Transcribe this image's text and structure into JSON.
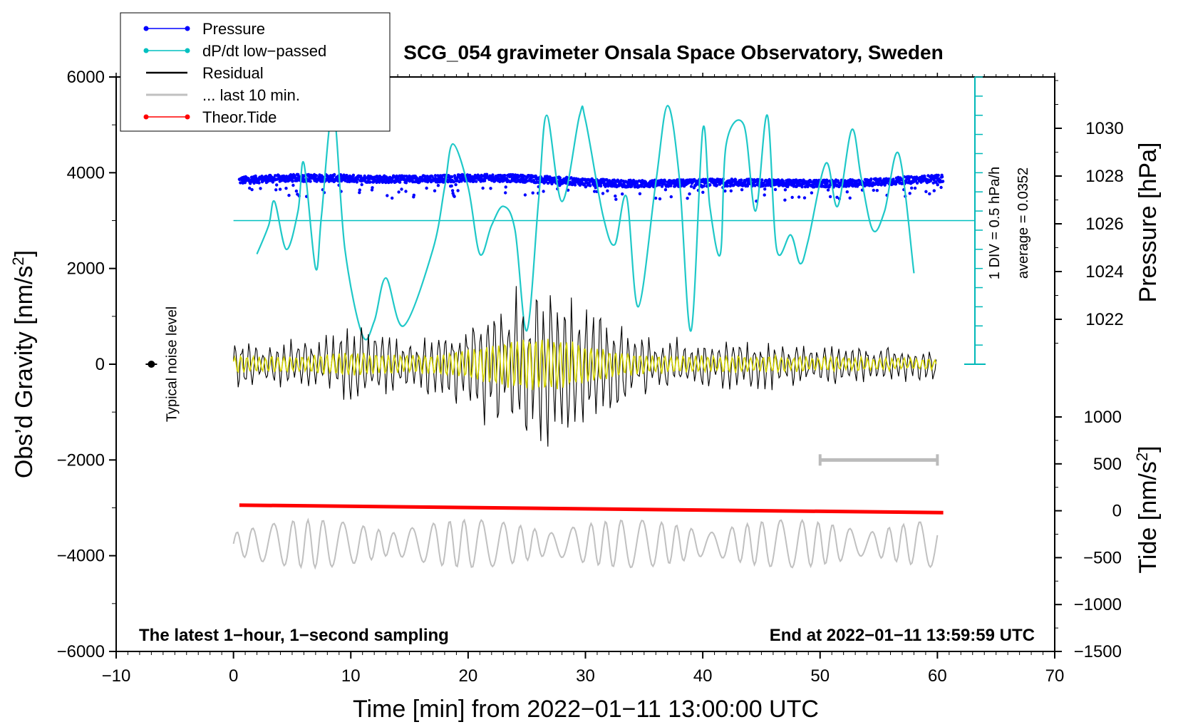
{
  "chart_data": {
    "type": "line",
    "title": "SCG_054 gravimeter Onsala Space Observatory, Sweden",
    "xlabel": "Time [min] from 2022−01−11 13:00:00 UTC",
    "ylabel_left": "Obs’d Gravity [nm/s",
    "ylabel_left_sup": "2",
    "ylabel_left_end": "]",
    "ylabel_right_pressure": "Pressure [hPa]",
    "ylabel_right_tide": "Tide [nm/s",
    "ylabel_right_tide_sup": "2",
    "ylabel_right_tide_end": "]",
    "xlim": [
      -10,
      70
    ],
    "ylim_left": [
      -6000,
      6000
    ],
    "x_ticks": [
      "−10",
      "0",
      "10",
      "20",
      "30",
      "40",
      "50",
      "60",
      "70"
    ],
    "x_tick_values": [
      -10,
      0,
      10,
      20,
      30,
      40,
      50,
      60,
      70
    ],
    "y_left_ticks": [
      "6000",
      "4000",
      "2000",
      "0",
      "−2000",
      "−4000",
      "−6000"
    ],
    "y_left_tick_values": [
      6000,
      4000,
      2000,
      0,
      -2000,
      -4000,
      -6000
    ],
    "pressure_ticks": [
      "1030",
      "1028",
      "1026",
      "1024",
      "1022"
    ],
    "pressure_tick_values": [
      1030,
      1028,
      1026,
      1024,
      1022
    ],
    "tide_ticks": [
      "1000",
      "500",
      "0",
      "−500",
      "−1000",
      "−1500"
    ],
    "tide_tick_values": [
      1000,
      500,
      0,
      -500,
      -1000,
      -1500
    ],
    "legend": [
      {
        "label": "Pressure",
        "color": "#0000ff",
        "marker": true
      },
      {
        "label": "dP/dt low−passed",
        "color": "#00c0c0",
        "marker": true
      },
      {
        "label": "Residual",
        "color": "#000000",
        "marker": false
      },
      {
        "label": "... last 10 min.",
        "color": "#c0c0c0",
        "marker": false
      },
      {
        "label": "Theor.Tide",
        "color": "#ff0000",
        "marker": true
      }
    ],
    "series": [
      {
        "name": "Pressure",
        "unit": "hPa",
        "x_range": [
          0.5,
          60.5
        ],
        "mean": 1027.8,
        "scatter": 0.3
      },
      {
        "name": "dP/dt low−passed",
        "unit": "hPa/h",
        "baseline_gravity": 3000,
        "x": [
          2,
          3,
          3.5,
          4.5,
          5.5,
          6,
          7,
          7.5,
          8.5,
          9.5,
          11,
          12,
          13,
          14.5,
          17,
          18,
          18.7,
          20,
          21,
          22,
          23,
          24,
          25,
          26,
          26.7,
          28,
          29.5,
          30,
          31.5,
          32.5,
          33.5,
          34.5,
          36,
          37,
          38,
          39,
          40,
          40.6,
          41.5,
          42,
          43.5,
          44.5,
          45.5,
          46.3,
          47.5,
          48.3,
          49,
          50.5,
          51.5,
          52.7,
          53.5,
          54.5,
          55.5,
          56.7,
          58
        ],
        "values_gravity": [
          2300,
          2900,
          3400,
          2400,
          3200,
          4200,
          2000,
          3100,
          5300,
          2400,
          600,
          900,
          1800,
          800,
          2400,
          3700,
          4600,
          3700,
          2300,
          2900,
          3300,
          2800,
          700,
          3400,
          5200,
          3400,
          5200,
          5100,
          3100,
          2500,
          3500,
          1200,
          3800,
          5400,
          3900,
          700,
          4900,
          3300,
          2300,
          4600,
          5000,
          3200,
          5200,
          2400,
          2700,
          2100,
          2600,
          4200,
          3300,
          4900,
          3900,
          2800,
          3200,
          4400,
          1900
        ]
      },
      {
        "name": "Residual",
        "unit": "nm/s2",
        "x_range": [
          0,
          60
        ],
        "amplitude_max": 2000
      },
      {
        "name": "last 10 min",
        "x_range": [
          0,
          60
        ],
        "offset_gravity": -3750,
        "amplitude": 500
      },
      {
        "name": "Theor.Tide",
        "unit": "nm/s2",
        "x": [
          0.5,
          60.5
        ],
        "values": [
          60,
          -20
        ]
      }
    ],
    "noise_marker": {
      "x": -7,
      "y": 0,
      "label": "Typical noise level"
    },
    "pressure_scale_label": "1 DIV = 0.5 hPa/h",
    "pressure_average_label": "average = 0.0352",
    "ten_minute_bar": {
      "x": [
        50,
        60
      ],
      "y": -2000
    },
    "footer_left": "The latest 1−hour, 1−second sampling",
    "footer_right": "End at 2022−01−11 13:59:59 UTC"
  }
}
